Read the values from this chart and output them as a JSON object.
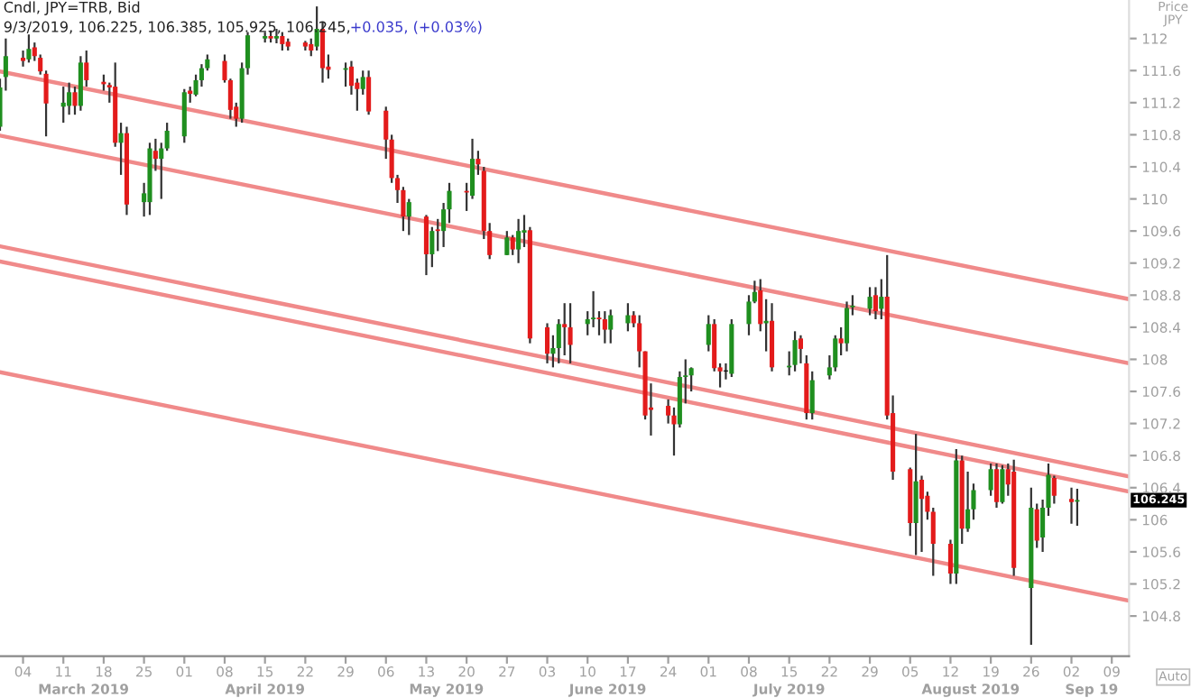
{
  "chart_data": {
    "type": "candlestick",
    "title": "Cndl, JPY=TRB, Bid",
    "subtitle": "9/3/2019, 106.225, 106.385, 105.925, 106.245,",
    "ylabel": "Price\nJPY",
    "x": [
      "2019-02-28",
      "2019-03-01",
      "2019-03-04",
      "2019-03-05",
      "2019-03-06",
      "2019-03-07",
      "2019-03-08",
      "2019-03-11",
      "2019-03-12",
      "2019-03-13",
      "2019-03-14",
      "2019-03-15",
      "2019-03-18",
      "2019-03-19",
      "2019-03-20",
      "2019-03-21",
      "2019-03-22",
      "2019-03-25",
      "2019-03-26",
      "2019-03-27",
      "2019-03-28",
      "2019-03-29",
      "2019-04-01",
      "2019-04-02",
      "2019-04-03",
      "2019-04-04",
      "2019-04-05",
      "2019-04-08",
      "2019-04-09",
      "2019-04-10",
      "2019-04-11",
      "2019-04-12",
      "2019-04-15",
      "2019-04-16",
      "2019-04-17",
      "2019-04-18",
      "2019-04-19",
      "2019-04-22",
      "2019-04-23",
      "2019-04-24",
      "2019-04-25",
      "2019-04-26",
      "2019-04-29",
      "2019-04-30",
      "2019-05-01",
      "2019-05-02",
      "2019-05-03",
      "2019-05-06",
      "2019-05-07",
      "2019-05-08",
      "2019-05-09",
      "2019-05-10",
      "2019-05-13",
      "2019-05-14",
      "2019-05-15",
      "2019-05-16",
      "2019-05-17",
      "2019-05-20",
      "2019-05-21",
      "2019-05-22",
      "2019-05-23",
      "2019-05-24",
      "2019-05-27",
      "2019-05-28",
      "2019-05-29",
      "2019-05-30",
      "2019-05-31",
      "2019-06-03",
      "2019-06-04",
      "2019-06-05",
      "2019-06-06",
      "2019-06-07",
      "2019-06-10",
      "2019-06-11",
      "2019-06-12",
      "2019-06-13",
      "2019-06-14",
      "2019-06-17",
      "2019-06-18",
      "2019-06-19",
      "2019-06-20",
      "2019-06-21",
      "2019-06-24",
      "2019-06-25",
      "2019-06-26",
      "2019-06-27",
      "2019-06-28",
      "2019-07-01",
      "2019-07-02",
      "2019-07-03",
      "2019-07-04",
      "2019-07-05",
      "2019-07-08",
      "2019-07-09",
      "2019-07-10",
      "2019-07-11",
      "2019-07-12",
      "2019-07-15",
      "2019-07-16",
      "2019-07-17",
      "2019-07-18",
      "2019-07-19",
      "2019-07-22",
      "2019-07-23",
      "2019-07-24",
      "2019-07-25",
      "2019-07-26",
      "2019-07-29",
      "2019-07-30",
      "2019-07-31",
      "2019-08-01",
      "2019-08-02",
      "2019-08-05",
      "2019-08-06",
      "2019-08-07",
      "2019-08-08",
      "2019-08-09",
      "2019-08-12",
      "2019-08-13",
      "2019-08-14",
      "2019-08-15",
      "2019-08-16",
      "2019-08-19",
      "2019-08-20",
      "2019-08-21",
      "2019-08-22",
      "2019-08-23",
      "2019-08-26",
      "2019-08-27",
      "2019-08-28",
      "2019-08-29",
      "2019-08-30",
      "2019-09-02",
      "2019-09-03"
    ],
    "ohlc": [
      [
        110.9,
        111.5,
        110.85,
        111.39
      ],
      [
        111.52,
        112.0,
        111.35,
        111.78
      ],
      [
        111.76,
        111.85,
        111.65,
        111.72
      ],
      [
        111.74,
        112.05,
        111.7,
        111.87
      ],
      [
        111.89,
        111.95,
        111.72,
        111.78
      ],
      [
        111.76,
        111.8,
        111.55,
        111.59
      ],
      [
        111.56,
        111.6,
        110.78,
        111.19
      ],
      [
        111.15,
        111.4,
        110.95,
        111.2
      ],
      [
        111.16,
        111.45,
        111.05,
        111.33
      ],
      [
        111.33,
        111.4,
        111.05,
        111.16
      ],
      [
        111.16,
        111.78,
        111.1,
        111.7
      ],
      [
        111.7,
        111.85,
        111.4,
        111.48
      ],
      [
        111.46,
        111.55,
        111.35,
        111.43
      ],
      [
        111.42,
        111.45,
        111.2,
        111.39
      ],
      [
        111.4,
        111.7,
        110.65,
        110.7
      ],
      [
        110.7,
        110.95,
        110.3,
        110.82
      ],
      [
        110.82,
        110.9,
        109.8,
        109.93
      ],
      [
        109.96,
        110.2,
        109.78,
        110.07
      ],
      [
        109.96,
        110.7,
        109.8,
        110.63
      ],
      [
        110.6,
        110.75,
        110.35,
        110.5
      ],
      [
        110.5,
        110.7,
        110.0,
        110.63
      ],
      [
        110.63,
        110.95,
        110.6,
        110.85
      ],
      [
        110.78,
        111.37,
        110.7,
        111.33
      ],
      [
        111.35,
        111.4,
        111.2,
        111.31
      ],
      [
        111.3,
        111.55,
        111.28,
        111.48
      ],
      [
        111.48,
        111.68,
        111.4,
        111.63
      ],
      [
        111.63,
        111.8,
        111.6,
        111.74
      ],
      [
        111.72,
        111.8,
        111.45,
        111.48
      ],
      [
        111.48,
        111.5,
        111.0,
        111.11
      ],
      [
        111.15,
        111.2,
        110.9,
        111.0
      ],
      [
        111.0,
        111.7,
        110.95,
        111.63
      ],
      [
        111.63,
        112.08,
        111.55,
        112.04
      ],
      [
        112.0,
        112.08,
        111.95,
        112.03
      ],
      [
        112.03,
        112.1,
        111.95,
        112.0
      ],
      [
        112.0,
        112.12,
        111.94,
        112.03
      ],
      [
        112.03,
        112.08,
        111.85,
        111.93
      ],
      [
        111.96,
        112.0,
        111.85,
        111.9
      ],
      [
        111.95,
        111.97,
        111.85,
        111.9
      ],
      [
        111.93,
        112.0,
        111.78,
        111.85
      ],
      [
        111.9,
        112.4,
        111.85,
        112.12
      ],
      [
        112.12,
        112.2,
        111.45,
        111.63
      ],
      [
        111.65,
        111.8,
        111.5,
        111.61
      ],
      [
        111.61,
        111.7,
        111.4,
        111.63
      ],
      [
        111.65,
        111.72,
        111.3,
        111.41
      ],
      [
        111.45,
        111.5,
        111.1,
        111.37
      ],
      [
        111.37,
        111.6,
        111.3,
        111.52
      ],
      [
        111.52,
        111.6,
        111.05,
        111.09
      ],
      [
        111.1,
        111.15,
        110.5,
        110.74
      ],
      [
        110.74,
        110.8,
        110.2,
        110.26
      ],
      [
        110.26,
        110.3,
        109.95,
        110.11
      ],
      [
        110.11,
        110.15,
        109.6,
        109.78
      ],
      [
        109.78,
        110.0,
        109.55,
        109.96
      ],
      [
        109.78,
        109.8,
        109.05,
        109.31
      ],
      [
        109.31,
        109.65,
        109.15,
        109.6
      ],
      [
        109.62,
        109.75,
        109.35,
        109.6
      ],
      [
        109.6,
        109.95,
        109.4,
        109.87
      ],
      [
        109.87,
        110.2,
        109.7,
        110.1
      ],
      [
        110.1,
        110.2,
        109.85,
        110.08
      ],
      [
        110.04,
        110.75,
        110.0,
        110.5
      ],
      [
        110.5,
        110.6,
        110.3,
        110.43
      ],
      [
        110.35,
        110.4,
        109.5,
        109.6
      ],
      [
        109.6,
        109.7,
        109.25,
        109.3
      ],
      [
        109.3,
        109.6,
        109.3,
        109.52
      ],
      [
        109.52,
        109.55,
        109.3,
        109.37
      ],
      [
        109.37,
        109.75,
        109.2,
        109.6
      ],
      [
        109.58,
        109.8,
        109.4,
        109.61
      ],
      [
        109.61,
        109.65,
        108.2,
        108.26
      ],
      [
        108.4,
        108.45,
        107.95,
        108.07
      ],
      [
        108.07,
        108.3,
        107.9,
        108.14
      ],
      [
        108.14,
        108.5,
        107.95,
        108.44
      ],
      [
        108.44,
        108.7,
        108.05,
        108.4
      ],
      [
        108.4,
        108.7,
        107.95,
        108.18
      ],
      [
        108.44,
        108.6,
        108.3,
        108.5
      ],
      [
        108.5,
        108.85,
        108.4,
        108.52
      ],
      [
        108.52,
        108.6,
        108.3,
        108.5
      ],
      [
        108.5,
        108.6,
        108.2,
        108.37
      ],
      [
        108.37,
        108.62,
        108.2,
        108.55
      ],
      [
        108.45,
        108.7,
        108.35,
        108.55
      ],
      [
        108.55,
        108.6,
        108.4,
        108.45
      ],
      [
        108.45,
        108.55,
        107.9,
        108.1
      ],
      [
        108.1,
        108.1,
        107.25,
        107.3
      ],
      [
        107.4,
        107.7,
        107.05,
        107.37
      ],
      [
        107.42,
        107.5,
        107.2,
        107.3
      ],
      [
        107.3,
        107.4,
        106.8,
        107.19
      ],
      [
        107.19,
        107.85,
        107.15,
        107.78
      ],
      [
        107.78,
        108.0,
        107.45,
        107.8
      ],
      [
        107.8,
        107.9,
        107.6,
        107.89
      ],
      [
        108.18,
        108.55,
        108.1,
        108.44
      ],
      [
        108.44,
        108.5,
        107.85,
        107.89
      ],
      [
        107.9,
        107.95,
        107.65,
        107.85
      ],
      [
        107.85,
        107.95,
        107.75,
        107.85
      ],
      [
        107.82,
        108.5,
        107.78,
        108.44
      ],
      [
        108.44,
        108.8,
        108.3,
        108.72
      ],
      [
        108.72,
        108.98,
        108.7,
        108.84
      ],
      [
        108.86,
        109.0,
        108.35,
        108.44
      ],
      [
        108.45,
        108.75,
        108.1,
        108.48
      ],
      [
        108.48,
        108.7,
        107.85,
        107.9
      ],
      [
        107.9,
        108.1,
        107.8,
        107.92
      ],
      [
        107.93,
        108.35,
        107.85,
        108.24
      ],
      [
        108.26,
        108.3,
        107.95,
        108.13
      ],
      [
        107.95,
        108.05,
        107.25,
        107.33
      ],
      [
        107.33,
        107.85,
        107.25,
        107.74
      ],
      [
        107.8,
        108.05,
        107.75,
        107.9
      ],
      [
        107.9,
        108.3,
        107.85,
        108.26
      ],
      [
        108.26,
        108.4,
        108.05,
        108.2
      ],
      [
        108.2,
        108.72,
        108.1,
        108.64
      ],
      [
        108.65,
        108.8,
        108.55,
        108.67
      ],
      [
        108.63,
        108.9,
        108.55,
        108.78
      ],
      [
        108.8,
        108.9,
        108.5,
        108.6
      ],
      [
        108.63,
        109.0,
        108.5,
        108.78
      ],
      [
        108.78,
        109.3,
        107.25,
        107.3
      ],
      [
        107.33,
        107.55,
        106.5,
        106.6
      ],
      [
        106.63,
        106.65,
        105.8,
        105.96
      ],
      [
        105.96,
        107.07,
        105.56,
        106.48
      ],
      [
        106.5,
        106.55,
        105.6,
        106.26
      ],
      [
        106.3,
        106.35,
        106.0,
        106.1
      ],
      [
        106.1,
        106.15,
        105.3,
        105.7
      ],
      [
        105.7,
        105.75,
        105.2,
        105.33
      ],
      [
        105.33,
        106.88,
        105.2,
        106.74
      ],
      [
        106.74,
        106.8,
        105.7,
        105.89
      ],
      [
        105.89,
        106.6,
        105.85,
        106.13
      ],
      [
        106.13,
        106.45,
        106.0,
        106.37
      ],
      [
        106.37,
        106.7,
        106.3,
        106.63
      ],
      [
        106.63,
        106.7,
        106.15,
        106.22
      ],
      [
        106.22,
        106.68,
        106.2,
        106.63
      ],
      [
        106.63,
        106.7,
        106.3,
        106.44
      ],
      [
        106.6,
        106.75,
        105.3,
        105.4
      ],
      [
        105.15,
        106.4,
        104.44,
        106.15
      ],
      [
        106.13,
        106.2,
        105.65,
        105.74
      ],
      [
        105.78,
        106.25,
        105.6,
        106.15
      ],
      [
        106.15,
        106.7,
        106.05,
        106.56
      ],
      [
        106.52,
        106.55,
        106.2,
        106.3
      ],
      [
        106.26,
        106.4,
        105.95,
        106.22
      ],
      [
        106.225,
        106.385,
        105.925,
        106.245
      ]
    ],
    "colors": [
      "#1f8f1f",
      "#1f8f1f",
      "#e31b1b",
      "#1f8f1f",
      "#e31b1b",
      "#e31b1b",
      "#e31b1b",
      "#1f8f1f",
      "#1f8f1f",
      "#e31b1b",
      "#1f8f1f",
      "#e31b1b",
      "#e31b1b",
      "#e31b1b",
      "#e31b1b",
      "#1f8f1f",
      "#e31b1b",
      "#1f8f1f",
      "#1f8f1f",
      "#e31b1b",
      "#1f8f1f",
      "#1f8f1f",
      "#1f8f1f",
      "#e31b1b",
      "#1f8f1f",
      "#1f8f1f",
      "#1f8f1f",
      "#e31b1b",
      "#e31b1b",
      "#e31b1b",
      "#1f8f1f",
      "#1f8f1f",
      "#1f8f1f",
      "#e31b1b",
      "#1f8f1f",
      "#e31b1b",
      "#e31b1b",
      "#e31b1b",
      "#e31b1b",
      "#1f8f1f",
      "#e31b1b",
      "#e31b1b",
      "#1f8f1f",
      "#e31b1b",
      "#e31b1b",
      "#1f8f1f",
      "#e31b1b",
      "#e31b1b",
      "#e31b1b",
      "#e31b1b",
      "#e31b1b",
      "#1f8f1f",
      "#e31b1b",
      "#1f8f1f",
      "#e31b1b",
      "#1f8f1f",
      "#1f8f1f",
      "#e31b1b",
      "#1f8f1f",
      "#e31b1b",
      "#e31b1b",
      "#e31b1b",
      "#1f8f1f",
      "#e31b1b",
      "#1f8f1f",
      "#1f8f1f",
      "#e31b1b",
      "#e31b1b",
      "#1f8f1f",
      "#1f8f1f",
      "#e31b1b",
      "#e31b1b",
      "#1f8f1f",
      "#1f8f1f",
      "#e31b1b",
      "#e31b1b",
      "#1f8f1f",
      "#1f8f1f",
      "#e31b1b",
      "#e31b1b",
      "#e31b1b",
      "#e31b1b",
      "#e31b1b",
      "#e31b1b",
      "#1f8f1f",
      "#1f8f1f",
      "#1f8f1f",
      "#1f8f1f",
      "#e31b1b",
      "#e31b1b",
      "#000000",
      "#1f8f1f",
      "#1f8f1f",
      "#1f8f1f",
      "#e31b1b",
      "#1f8f1f",
      "#e31b1b",
      "#1f8f1f",
      "#1f8f1f",
      "#e31b1b",
      "#e31b1b",
      "#1f8f1f",
      "#1f8f1f",
      "#1f8f1f",
      "#e31b1b",
      "#1f8f1f",
      "#1f8f1f",
      "#1f8f1f",
      "#e31b1b",
      "#1f8f1f",
      "#e31b1b",
      "#e31b1b",
      "#e31b1b",
      "#1f8f1f",
      "#e31b1b",
      "#e31b1b",
      "#e31b1b",
      "#e31b1b",
      "#1f8f1f",
      "#e31b1b",
      "#1f8f1f",
      "#1f8f1f",
      "#1f8f1f",
      "#e31b1b",
      "#1f8f1f",
      "#e31b1b",
      "#e31b1b",
      "#1f8f1f",
      "#e31b1b",
      "#1f8f1f",
      "#1f8f1f",
      "#e31b1b",
      "#e31b1b",
      "#1f8f1f"
    ],
    "series": [
      {
        "type": "line",
        "color": "#f08a8a",
        "x": [
          "2019-02-28",
          "2019-09-12"
        ],
        "values": [
          111.59,
          108.75
        ]
      },
      {
        "type": "line",
        "color": "#f08a8a",
        "x": [
          "2019-02-28",
          "2019-09-12"
        ],
        "values": [
          110.79,
          107.95
        ]
      },
      {
        "type": "line",
        "color": "#f08a8a",
        "x": [
          "2019-02-28",
          "2019-09-12"
        ],
        "values": [
          109.41,
          106.54
        ]
      },
      {
        "type": "line",
        "color": "#f08a8a",
        "x": [
          "2019-02-28",
          "2019-09-12"
        ],
        "values": [
          109.22,
          106.35
        ]
      },
      {
        "type": "line",
        "color": "#f08a8a",
        "x": [
          "2019-02-28",
          "2019-09-12"
        ],
        "values": [
          107.84,
          104.99
        ]
      }
    ],
    "xlim": [
      "2019-02-28",
      "2019-09-12"
    ],
    "ylim": [
      104.3,
      112.48
    ],
    "xticks": [
      {
        "value": "2019-03-04",
        "label": "04"
      },
      {
        "value": "2019-03-11",
        "label": "11"
      },
      {
        "value": "2019-03-18",
        "label": "18"
      },
      {
        "value": "2019-03-25",
        "label": "25"
      },
      {
        "value": "2019-04-01",
        "label": "01"
      },
      {
        "value": "2019-04-08",
        "label": "08"
      },
      {
        "value": "2019-04-15",
        "label": "15"
      },
      {
        "value": "2019-04-22",
        "label": "22"
      },
      {
        "value": "2019-04-29",
        "label": "29"
      },
      {
        "value": "2019-05-06",
        "label": "06"
      },
      {
        "value": "2019-05-13",
        "label": "13"
      },
      {
        "value": "2019-05-20",
        "label": "20"
      },
      {
        "value": "2019-05-27",
        "label": "27"
      },
      {
        "value": "2019-06-03",
        "label": "03"
      },
      {
        "value": "2019-06-10",
        "label": "10"
      },
      {
        "value": "2019-06-17",
        "label": "17"
      },
      {
        "value": "2019-06-24",
        "label": "24"
      },
      {
        "value": "2019-07-01",
        "label": "01"
      },
      {
        "value": "2019-07-08",
        "label": "08"
      },
      {
        "value": "2019-07-15",
        "label": "15"
      },
      {
        "value": "2019-07-22",
        "label": "22"
      },
      {
        "value": "2019-07-29",
        "label": "29"
      },
      {
        "value": "2019-08-05",
        "label": "05"
      },
      {
        "value": "2019-08-12",
        "label": "12"
      },
      {
        "value": "2019-08-19",
        "label": "19"
      },
      {
        "value": "2019-08-26",
        "label": "26"
      },
      {
        "value": "2019-09-02",
        "label": "02"
      },
      {
        "value": "2019-09-09",
        "label": "09"
      }
    ],
    "yticks": [
      104.8,
      105.2,
      105.6,
      106,
      106.4,
      106.8,
      107.2,
      107.6,
      108,
      108.4,
      108.8,
      109.2,
      109.6,
      110,
      110.4,
      110.8,
      111.2,
      111.6,
      112
    ],
    "grid": false,
    "annotations": [
      "+0.035, (+0.03%)",
      "Auto",
      "106.245",
      "March 2019",
      "April 2019",
      "May 2019",
      "June 2019",
      "July 2019",
      "August 2019",
      "Sep 19"
    ]
  }
}
